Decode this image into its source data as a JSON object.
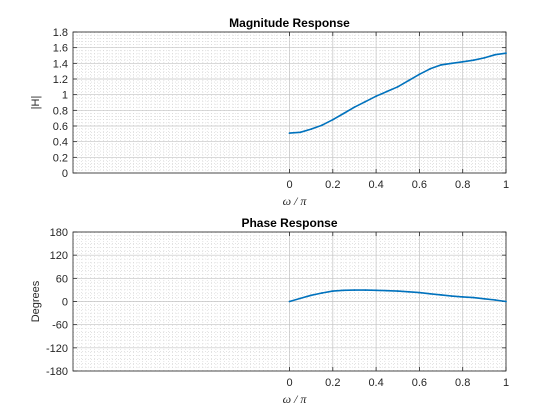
{
  "chart_data": [
    {
      "type": "line",
      "title": "Magnitude Response",
      "xlabel": "ω / π",
      "ylabel": "|H|",
      "xlim": [
        -1,
        1
      ],
      "ylim": [
        0,
        1.8
      ],
      "xticks": [
        "0",
        "0.2",
        "0.4",
        "0.6",
        "0.8",
        "1"
      ],
      "yticks": [
        "0",
        "0.2",
        "0.4",
        "0.6",
        "0.8",
        "1",
        "1.2",
        "1.4",
        "1.6",
        "1.8"
      ],
      "grid": true,
      "minor_grid": true,
      "line_color": "#0072BD",
      "series": [
        {
          "x": [
            0,
            0.05,
            0.1,
            0.15,
            0.2,
            0.25,
            0.3,
            0.35,
            0.4,
            0.45,
            0.5,
            0.55,
            0.6,
            0.65,
            0.7,
            0.75,
            0.8,
            0.85,
            0.9,
            0.95,
            1.0
          ],
          "y": [
            0.51,
            0.52,
            0.56,
            0.61,
            0.68,
            0.76,
            0.84,
            0.91,
            0.98,
            1.04,
            1.1,
            1.18,
            1.26,
            1.33,
            1.38,
            1.4,
            1.42,
            1.44,
            1.47,
            1.51,
            1.53
          ]
        }
      ]
    },
    {
      "type": "line",
      "title": "Phase Response",
      "xlabel": "ω / π",
      "ylabel": "Degrees",
      "xlim": [
        -1,
        1
      ],
      "ylim": [
        -180,
        180
      ],
      "xticks": [
        "0",
        "0.2",
        "0.4",
        "0.6",
        "0.8",
        "1"
      ],
      "yticks": [
        "-180",
        "-120",
        "-60",
        "0",
        "60",
        "120",
        "180"
      ],
      "grid": true,
      "minor_grid": true,
      "line_color": "#0072BD",
      "series": [
        {
          "x": [
            0,
            0.05,
            0.1,
            0.15,
            0.2,
            0.25,
            0.3,
            0.35,
            0.4,
            0.45,
            0.5,
            0.55,
            0.6,
            0.65,
            0.7,
            0.75,
            0.8,
            0.85,
            0.9,
            0.95,
            1.0
          ],
          "y": [
            0,
            8,
            16,
            22,
            27,
            29,
            29.5,
            29.5,
            29,
            28,
            27,
            25,
            23,
            20,
            17,
            14,
            12,
            10,
            7,
            4,
            0
          ]
        }
      ]
    }
  ]
}
